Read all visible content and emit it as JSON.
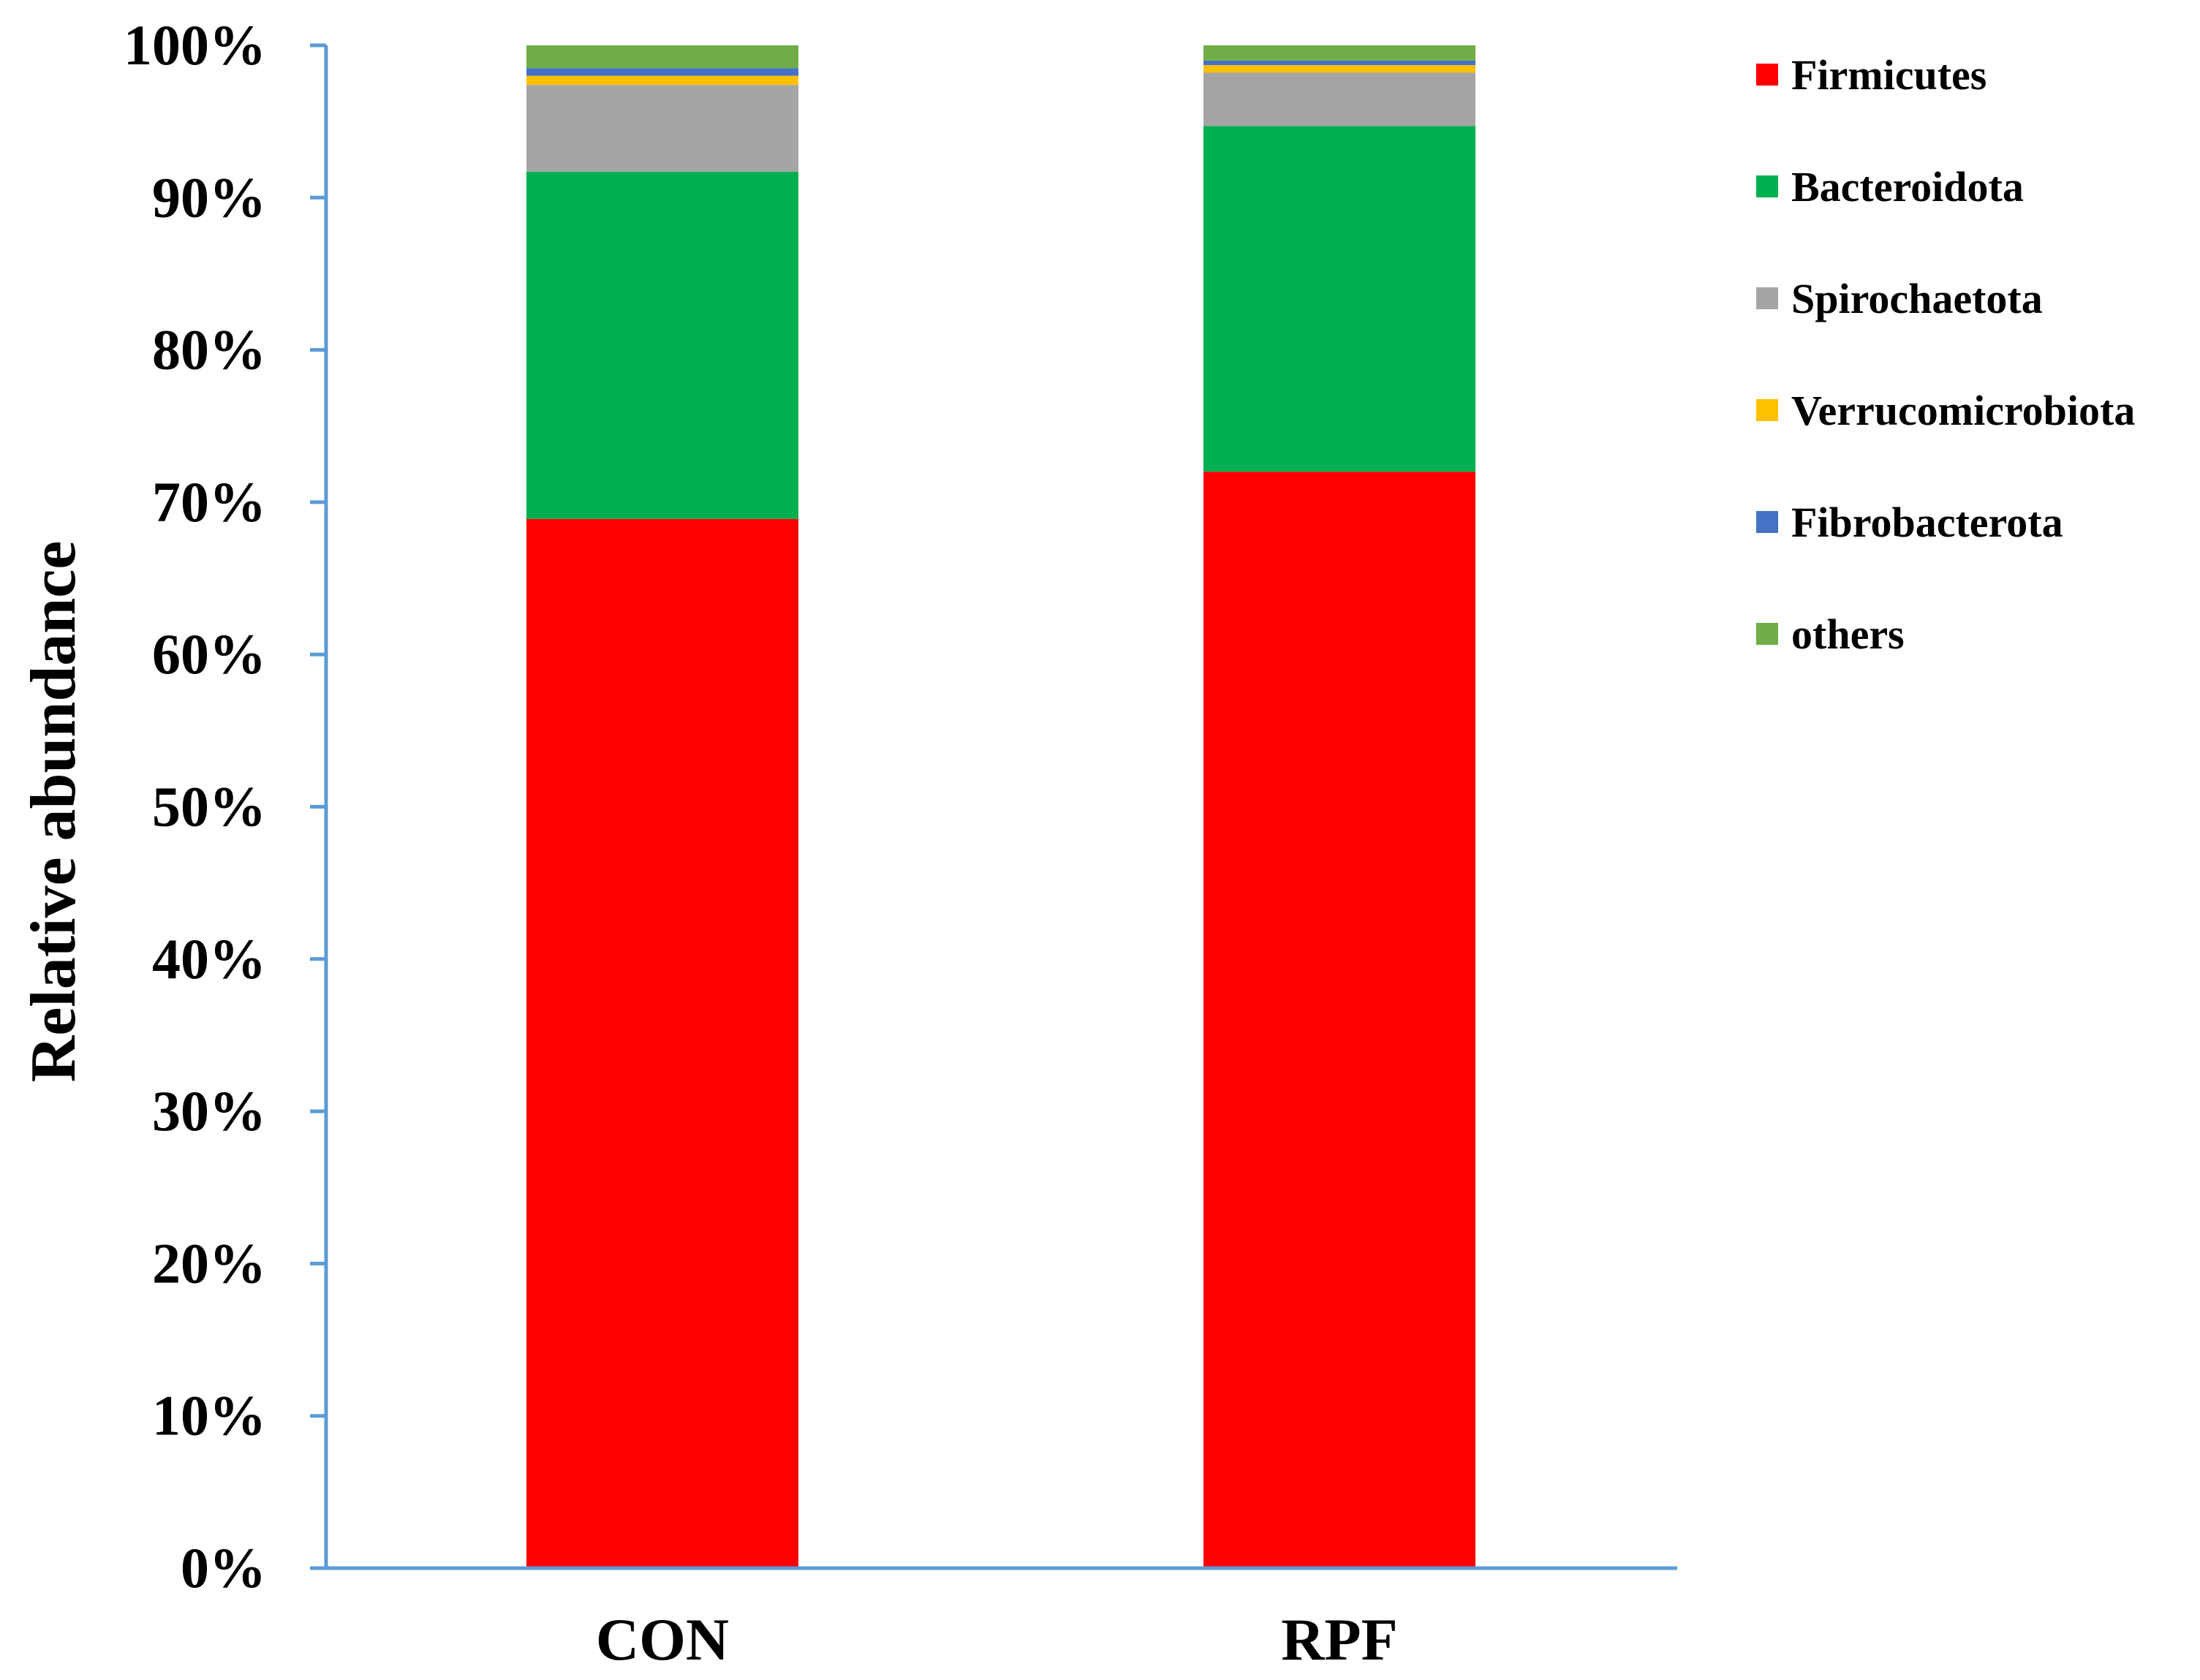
{
  "chart_data": {
    "type": "bar",
    "stacked": true,
    "title": "",
    "xlabel": "",
    "ylabel": "Relative abundance",
    "ylim": [
      0,
      100
    ],
    "y_ticks": [
      "0%",
      "10%",
      "20%",
      "30%",
      "40%",
      "50%",
      "60%",
      "70%",
      "80%",
      "90%",
      "100%"
    ],
    "categories": [
      "CON",
      "RPF"
    ],
    "legend_position": "right",
    "grid": false,
    "axis_color": "#5B9BD5",
    "series": [
      {
        "name": "Firmicutes",
        "color": "#FF0000",
        "values": [
          68.9,
          72.0
        ]
      },
      {
        "name": "Bacteroidota",
        "color": "#00B050",
        "values": [
          22.8,
          22.7
        ]
      },
      {
        "name": "Spirochaetota",
        "color": "#A5A5A5",
        "values": [
          5.7,
          3.5
        ]
      },
      {
        "name": "Verrucomicrobiota",
        "color": "#FFC000",
        "values": [
          0.6,
          0.5
        ]
      },
      {
        "name": "Fibrobacterota",
        "color": "#4472C4",
        "values": [
          0.5,
          0.3
        ]
      },
      {
        "name": "others",
        "color": "#70AD47",
        "values": [
          1.5,
          1.0
        ]
      }
    ]
  }
}
